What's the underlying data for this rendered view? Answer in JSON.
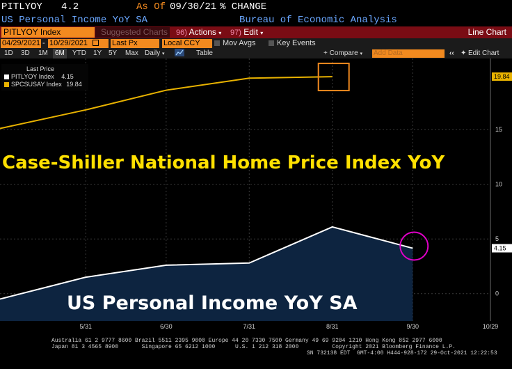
{
  "header": {
    "ticker": "PITLYOY",
    "value": "4.2",
    "as_of_label": "As Of",
    "as_of_date": "09/30/21",
    "change_label": "% CHANGE",
    "description": "US Personal Income YoY SA",
    "source": "Bureau of Economic Analysis"
  },
  "toolbar": {
    "security": "PITLYOY Index",
    "suggested": "Suggested Charts",
    "actions_num": "96)",
    "actions_label": "Actions",
    "edit_num": "97)",
    "edit_label": "Edit",
    "chart_type": "Line Chart"
  },
  "toolbar2": {
    "start_date": "04/29/2021",
    "end_date": "10/29/2021",
    "price_field": "Last Px",
    "currency": "Local CCY",
    "mov_avgs": "Mov Avgs",
    "key_events": "Key Events"
  },
  "toolbar3": {
    "periods": [
      "1D",
      "3D",
      "1M",
      "6M",
      "YTD",
      "1Y",
      "5Y",
      "Max"
    ],
    "selected_period": "6M",
    "frequency": "Daily",
    "table_label": "Table",
    "compare_label": "+ Compare",
    "add_data_placeholder": "Add Data",
    "edit_chart_label": "Edit Chart"
  },
  "legend": {
    "header": "Last Price",
    "items": [
      {
        "label": "PITLYOY Index",
        "value": "4.15",
        "color": "#ffffff"
      },
      {
        "label": "SPCSUSAY Index",
        "value": "19.84",
        "color": "#e8b200"
      }
    ]
  },
  "annotations": {
    "top": "Case-Shiller National Home Price Index YoY",
    "bottom": "US Personal Income YoY SA"
  },
  "chart_data": {
    "type": "line",
    "x_ticks": [
      "5/31",
      "6/30",
      "7/31",
      "8/31",
      "9/30",
      "10/29"
    ],
    "y_ticks": [
      0,
      5,
      10,
      15
    ],
    "ylim": [
      -2.5,
      21.5
    ],
    "series": [
      {
        "name": "SPCSUSAY Index",
        "color": "#e8b200",
        "points": [
          {
            "x": "04/29/2021",
            "y": 15.1
          },
          {
            "x": "05/31/2021",
            "y": 16.8
          },
          {
            "x": "06/30/2021",
            "y": 18.6
          },
          {
            "x": "07/31/2021",
            "y": 19.7
          },
          {
            "x": "08/31/2021",
            "y": 19.84
          }
        ],
        "last_label": "19.84"
      },
      {
        "name": "PITLYOY Index",
        "color": "#ffffff",
        "fill": "#0d2440",
        "points": [
          {
            "x": "04/29/2021",
            "y": -0.5
          },
          {
            "x": "05/31/2021",
            "y": 1.5
          },
          {
            "x": "06/30/2021",
            "y": 2.6
          },
          {
            "x": "07/31/2021",
            "y": 2.8
          },
          {
            "x": "08/31/2021",
            "y": 6.1
          },
          {
            "x": "09/30/2021",
            "y": 4.15
          }
        ],
        "last_label": "4.15"
      }
    ]
  },
  "footer": {
    "line1": "Australia 61 2 9777 8600 Brazil 5511 2395 9000 Europe 44 20 7330 7500 Germany 49 69 9204 1210 Hong Kong 852 2977 6000",
    "line2": "Japan 81 3 4565 8900       Singapore 65 6212 1000      U.S. 1 212 318 2000          Copyright 2021 Bloomberg Finance L.P.",
    "line3": "SN 732138 EDT  GMT-4:00 H444-928-172 29-Oct-2021 12:22:53"
  }
}
